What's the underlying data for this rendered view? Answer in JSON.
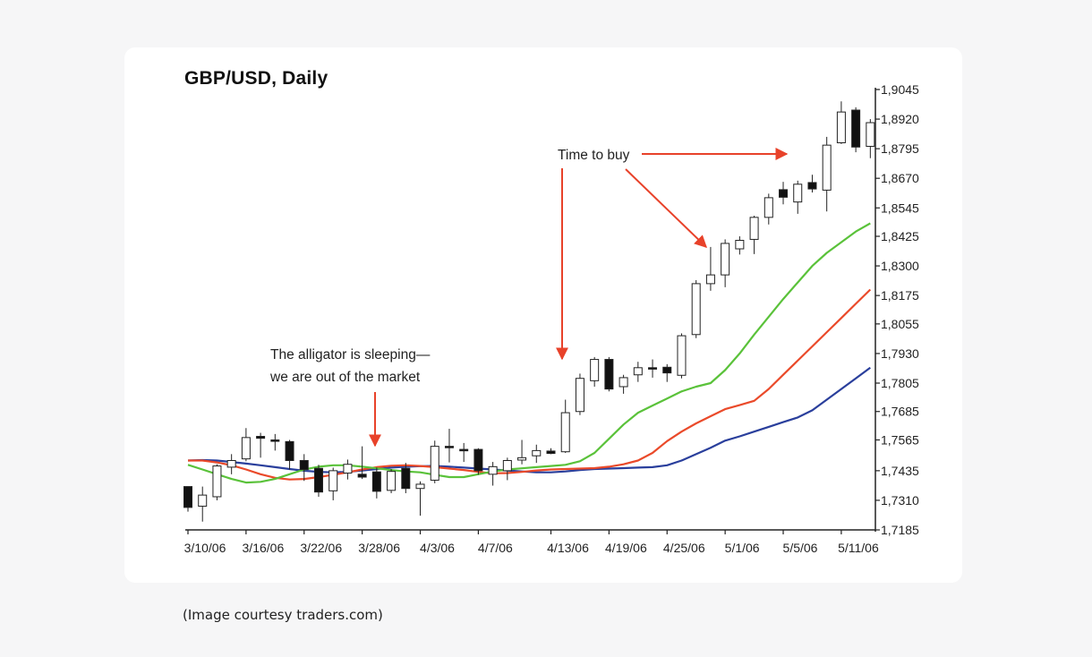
{
  "caption": "(Image courtesy traders.com)",
  "chart_data": {
    "type": "candlestick",
    "title": "GBP/USD, Daily",
    "xlabel": "",
    "ylabel": "",
    "ylim": [
      1.7185,
      1.9045
    ],
    "y_ticks": [
      "1,9045",
      "1,8920",
      "1,8795",
      "1,8670",
      "1,8545",
      "1,8425",
      "1,8300",
      "1,8175",
      "1,8055",
      "1,7930",
      "1,7805",
      "1,7685",
      "1,7565",
      "1,7435",
      "1,7310",
      "1,7185"
    ],
    "y_tick_values": [
      1.9045,
      1.892,
      1.8795,
      1.867,
      1.8545,
      1.8425,
      1.83,
      1.8175,
      1.8055,
      1.793,
      1.7805,
      1.7685,
      1.7565,
      1.7435,
      1.731,
      1.7185
    ],
    "x_ticks": [
      "3/10/06",
      "3/16/06",
      "3/22/06",
      "3/28/06",
      "4/3/06",
      "4/7/06",
      "4/13/06",
      "4/19/06",
      "4/25/06",
      "5/1/06",
      "5/5/06",
      "5/11/06"
    ],
    "x_tick_index": [
      0,
      4,
      8,
      12,
      16,
      20,
      25,
      29,
      33,
      37,
      41,
      45
    ],
    "grid": false,
    "legend": "none",
    "candles": [
      {
        "o": 1.7368,
        "h": 1.7368,
        "l": 1.7262,
        "c": 1.728
      },
      {
        "o": 1.7285,
        "h": 1.7368,
        "l": 1.722,
        "c": 1.7332
      },
      {
        "o": 1.7325,
        "h": 1.7462,
        "l": 1.731,
        "c": 1.7455
      },
      {
        "o": 1.745,
        "h": 1.7505,
        "l": 1.742,
        "c": 1.7478
      },
      {
        "o": 1.7485,
        "h": 1.7615,
        "l": 1.7475,
        "c": 1.7575
      },
      {
        "o": 1.758,
        "h": 1.7595,
        "l": 1.749,
        "c": 1.7572
      },
      {
        "o": 1.7565,
        "h": 1.759,
        "l": 1.752,
        "c": 1.756
      },
      {
        "o": 1.7558,
        "h": 1.7565,
        "l": 1.744,
        "c": 1.7478
      },
      {
        "o": 1.7478,
        "h": 1.7505,
        "l": 1.7392,
        "c": 1.744
      },
      {
        "o": 1.7445,
        "h": 1.746,
        "l": 1.7325,
        "c": 1.7345
      },
      {
        "o": 1.735,
        "h": 1.7448,
        "l": 1.731,
        "c": 1.7435
      },
      {
        "o": 1.7425,
        "h": 1.7482,
        "l": 1.7398,
        "c": 1.7462
      },
      {
        "o": 1.742,
        "h": 1.7538,
        "l": 1.74,
        "c": 1.7408
      },
      {
        "o": 1.743,
        "h": 1.7448,
        "l": 1.7318,
        "c": 1.7348
      },
      {
        "o": 1.7352,
        "h": 1.7442,
        "l": 1.734,
        "c": 1.7432
      },
      {
        "o": 1.7445,
        "h": 1.7468,
        "l": 1.734,
        "c": 1.736
      },
      {
        "o": 1.736,
        "h": 1.739,
        "l": 1.7245,
        "c": 1.7378
      },
      {
        "o": 1.7395,
        "h": 1.7562,
        "l": 1.7382,
        "c": 1.7538
      },
      {
        "o": 1.7538,
        "h": 1.7612,
        "l": 1.747,
        "c": 1.7532
      },
      {
        "o": 1.7525,
        "h": 1.7552,
        "l": 1.7472,
        "c": 1.752
      },
      {
        "o": 1.7525,
        "h": 1.753,
        "l": 1.7418,
        "c": 1.7435
      },
      {
        "o": 1.742,
        "h": 1.7472,
        "l": 1.7372,
        "c": 1.7452
      },
      {
        "o": 1.7435,
        "h": 1.749,
        "l": 1.7395,
        "c": 1.7478
      },
      {
        "o": 1.748,
        "h": 1.7565,
        "l": 1.7462,
        "c": 1.749
      },
      {
        "o": 1.7498,
        "h": 1.7545,
        "l": 1.7468,
        "c": 1.752
      },
      {
        "o": 1.7518,
        "h": 1.753,
        "l": 1.7505,
        "c": 1.7508
      },
      {
        "o": 1.7515,
        "h": 1.7735,
        "l": 1.751,
        "c": 1.768
      },
      {
        "o": 1.7685,
        "h": 1.7845,
        "l": 1.767,
        "c": 1.7825
      },
      {
        "o": 1.7815,
        "h": 1.7915,
        "l": 1.779,
        "c": 1.7905
      },
      {
        "o": 1.7905,
        "h": 1.7915,
        "l": 1.777,
        "c": 1.778
      },
      {
        "o": 1.779,
        "h": 1.784,
        "l": 1.776,
        "c": 1.7828
      },
      {
        "o": 1.784,
        "h": 1.7895,
        "l": 1.781,
        "c": 1.787
      },
      {
        "o": 1.787,
        "h": 1.7905,
        "l": 1.7828,
        "c": 1.7865
      },
      {
        "o": 1.7872,
        "h": 1.7885,
        "l": 1.781,
        "c": 1.7848
      },
      {
        "o": 1.7838,
        "h": 1.8015,
        "l": 1.7825,
        "c": 1.8005
      },
      {
        "o": 1.801,
        "h": 1.824,
        "l": 1.7995,
        "c": 1.8225
      },
      {
        "o": 1.8225,
        "h": 1.838,
        "l": 1.8195,
        "c": 1.8262
      },
      {
        "o": 1.8262,
        "h": 1.8412,
        "l": 1.821,
        "c": 1.8395
      },
      {
        "o": 1.8372,
        "h": 1.8425,
        "l": 1.8348,
        "c": 1.8408
      },
      {
        "o": 1.8412,
        "h": 1.8512,
        "l": 1.835,
        "c": 1.8505
      },
      {
        "o": 1.8505,
        "h": 1.8605,
        "l": 1.8475,
        "c": 1.8588
      },
      {
        "o": 1.8622,
        "h": 1.8655,
        "l": 1.856,
        "c": 1.859
      },
      {
        "o": 1.857,
        "h": 1.866,
        "l": 1.852,
        "c": 1.8645
      },
      {
        "o": 1.8652,
        "h": 1.8685,
        "l": 1.861,
        "c": 1.8625
      },
      {
        "o": 1.862,
        "h": 1.8845,
        "l": 1.853,
        "c": 1.881
      },
      {
        "o": 1.882,
        "h": 1.8995,
        "l": 1.8815,
        "c": 1.895
      },
      {
        "o": 1.8958,
        "h": 1.897,
        "l": 1.878,
        "c": 1.8802
      },
      {
        "o": 1.8805,
        "h": 1.892,
        "l": 1.8755,
        "c": 1.8905
      }
    ],
    "series": [
      {
        "color": "#2a3f9c",
        "values": [
          1.7478,
          1.748,
          1.7478,
          1.7472,
          1.7465,
          1.7458,
          1.745,
          1.7442,
          1.7435,
          1.743,
          1.7428,
          1.743,
          1.7436,
          1.7442,
          1.7448,
          1.7452,
          1.7454,
          1.7455,
          1.7452,
          1.7448,
          1.7444,
          1.744,
          1.7436,
          1.7432,
          1.7428,
          1.7428,
          1.7432,
          1.7438,
          1.7442,
          1.7444,
          1.7446,
          1.7448,
          1.745,
          1.7458,
          1.7478,
          1.7505,
          1.7532,
          1.7562,
          1.758,
          1.76,
          1.762,
          1.764,
          1.766,
          1.769,
          1.7735,
          1.778,
          1.7825,
          1.787
        ]
      },
      {
        "color": "#ea4a2a",
        "values": [
          1.7478,
          1.7478,
          1.747,
          1.7458,
          1.744,
          1.742,
          1.7405,
          1.7398,
          1.74,
          1.7408,
          1.7418,
          1.7428,
          1.744,
          1.745,
          1.7456,
          1.7458,
          1.7455,
          1.745,
          1.7444,
          1.7438,
          1.743,
          1.7424,
          1.7425,
          1.743,
          1.7436,
          1.744,
          1.7442,
          1.7444,
          1.7446,
          1.7452,
          1.7462,
          1.7478,
          1.751,
          1.756,
          1.76,
          1.7635,
          1.7665,
          1.7695,
          1.7712,
          1.773,
          1.778,
          1.784,
          1.79,
          1.796,
          1.802,
          1.808,
          1.814,
          1.82
        ]
      },
      {
        "color": "#5ac23a",
        "values": [
          1.746,
          1.744,
          1.742,
          1.74,
          1.7385,
          1.7388,
          1.74,
          1.742,
          1.744,
          1.7452,
          1.7458,
          1.7458,
          1.7452,
          1.7445,
          1.7438,
          1.7432,
          1.7428,
          1.7418,
          1.7408,
          1.7408,
          1.742,
          1.7432,
          1.744,
          1.7445,
          1.745,
          1.7455,
          1.746,
          1.7475,
          1.751,
          1.757,
          1.763,
          1.768,
          1.771,
          1.774,
          1.777,
          1.779,
          1.7805,
          1.786,
          1.793,
          1.801,
          1.8085,
          1.816,
          1.823,
          1.83,
          1.8355,
          1.84,
          1.8445,
          1.848
        ]
      }
    ],
    "annotations": [
      {
        "text": "The alligator is sleeping—",
        "line": 1
      },
      {
        "text": "we are out of the market",
        "line": 2
      },
      {
        "text": "Time to buy"
      }
    ]
  }
}
